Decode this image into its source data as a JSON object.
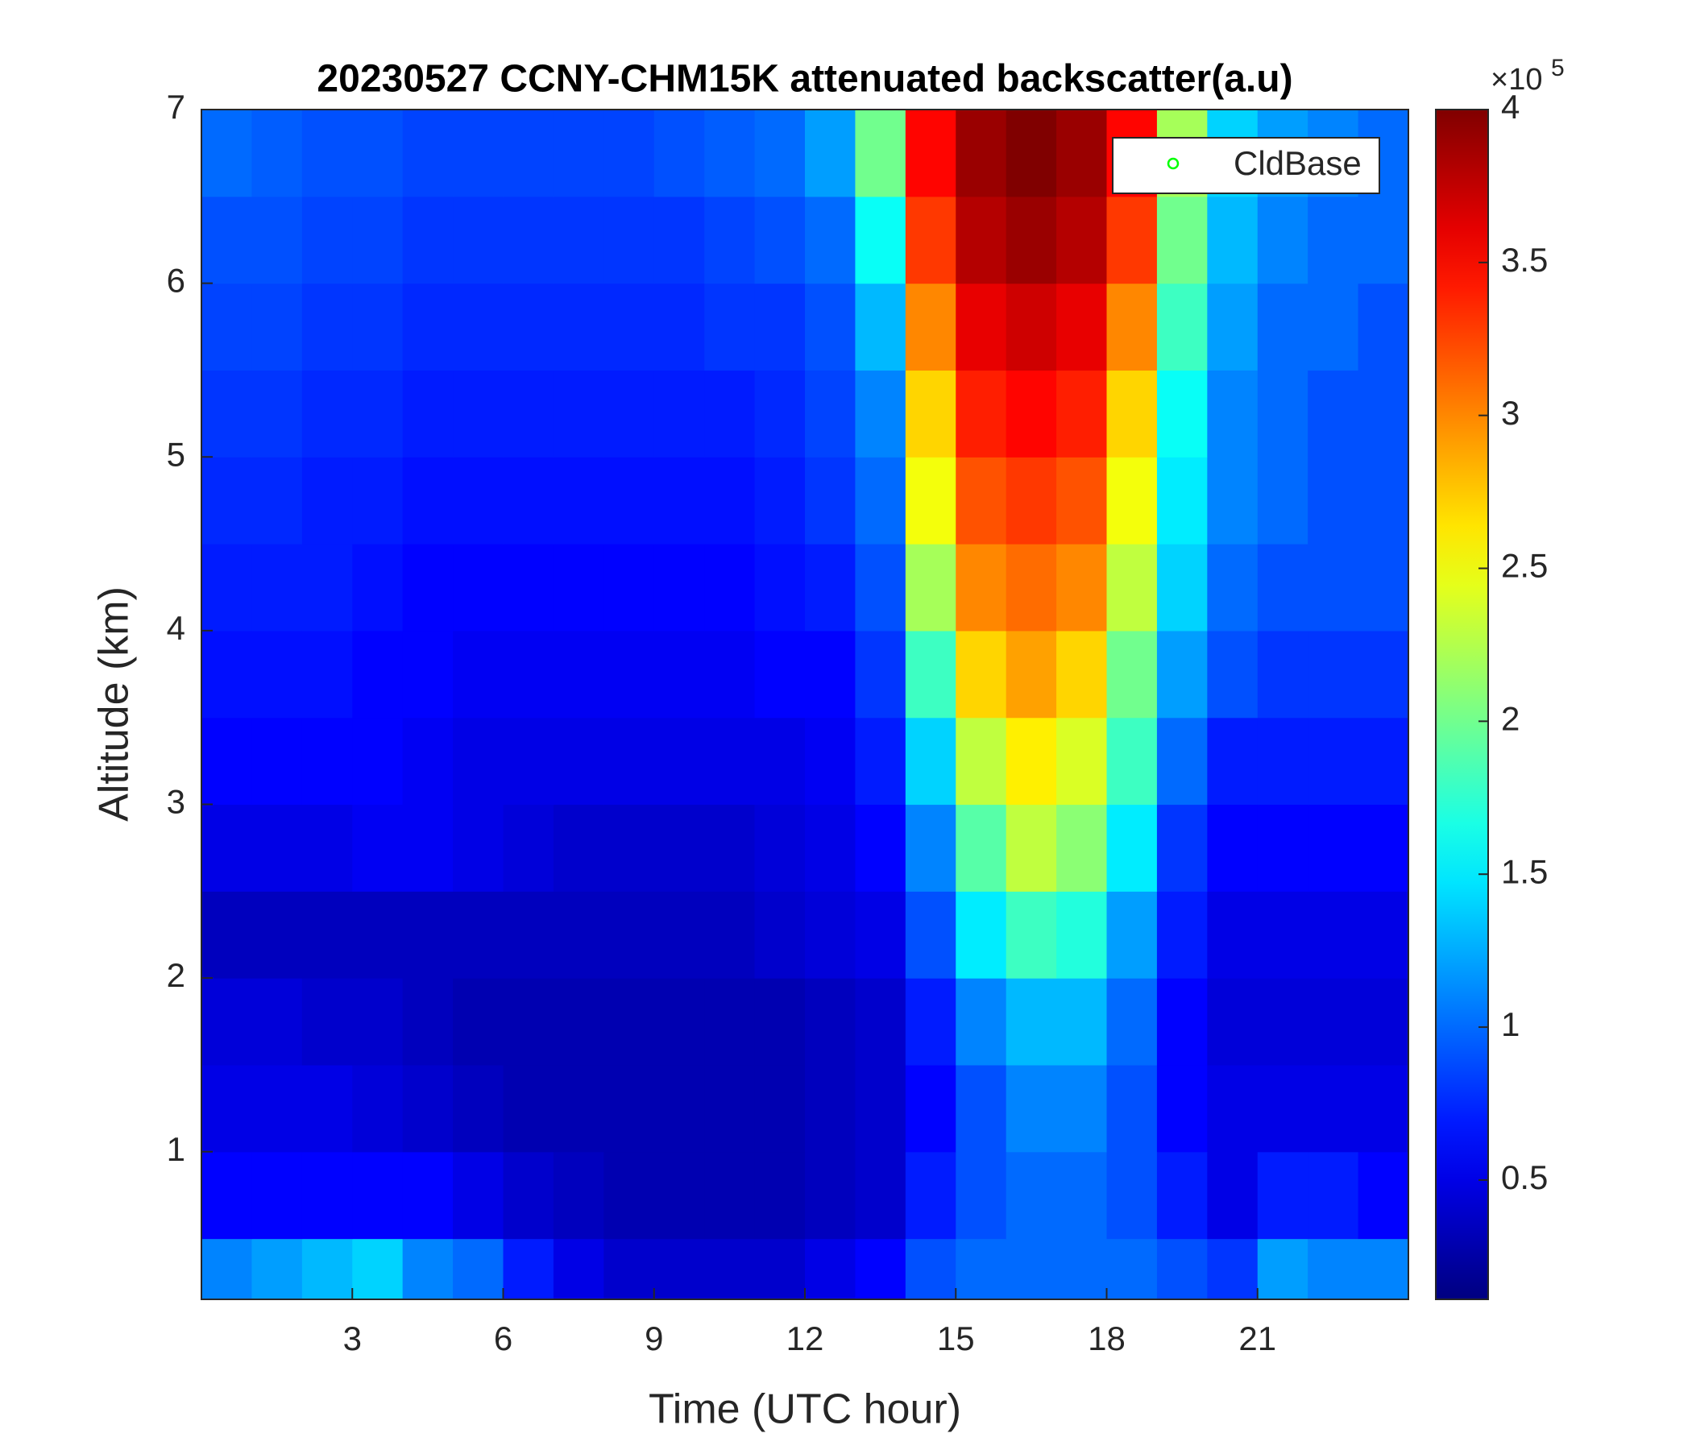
{
  "chart_data": {
    "type": "heatmap",
    "title": "20230527 CCNY-CHM15K attenuated backscatter(a.u)",
    "x_label": "Time (UTC hour)",
    "y_label": "Altitude (km)",
    "xlim": [
      0,
      24
    ],
    "ylim": [
      0.15,
      7
    ],
    "xticks": [
      3,
      6,
      9,
      12,
      15,
      18,
      21
    ],
    "yticks": [
      1,
      2,
      3,
      4,
      5,
      6,
      7
    ],
    "colormap": "jet",
    "clim": [
      0.11,
      4
    ],
    "colorbar_ticks": [
      0.5,
      1,
      1.5,
      2,
      2.5,
      3,
      3.5,
      4
    ],
    "colorbar_scale_base": "×10",
    "colorbar_scale_exponent": "5",
    "legend_location": "northeast",
    "series": [
      {
        "name": "CldBase",
        "color": "#00ff00",
        "marker": "o",
        "x": [],
        "values": []
      }
    ],
    "x_bins": [
      0,
      1,
      2,
      3,
      4,
      5,
      6,
      7,
      8,
      9,
      10,
      11,
      12,
      13,
      14,
      15,
      16,
      17,
      18,
      19,
      20,
      21,
      22,
      23,
      24
    ],
    "y_bins": [
      0.15,
      0.5,
      1,
      1.5,
      2,
      2.5,
      3,
      3.5,
      4,
      4.5,
      5,
      5.5,
      6,
      6.5,
      7
    ],
    "z": [
      [
        1.1,
        1.2,
        1.3,
        1.4,
        1.1,
        1.0,
        0.7,
        0.5,
        0.4,
        0.4,
        0.4,
        0.4,
        0.5,
        0.6,
        0.9,
        1.0,
        1.0,
        1.0,
        1.0,
        0.9,
        0.8,
        1.2,
        1.1,
        1.1
      ],
      [
        0.6,
        0.6,
        0.6,
        0.6,
        0.6,
        0.5,
        0.4,
        0.35,
        0.3,
        0.3,
        0.3,
        0.3,
        0.35,
        0.4,
        0.7,
        0.9,
        1.0,
        1.0,
        0.9,
        0.7,
        0.5,
        0.7,
        0.7,
        0.6
      ],
      [
        0.5,
        0.5,
        0.5,
        0.45,
        0.4,
        0.35,
        0.3,
        0.3,
        0.3,
        0.3,
        0.3,
        0.3,
        0.35,
        0.4,
        0.6,
        0.9,
        1.1,
        1.1,
        0.9,
        0.6,
        0.5,
        0.5,
        0.5,
        0.5
      ],
      [
        0.45,
        0.45,
        0.4,
        0.4,
        0.35,
        0.3,
        0.3,
        0.3,
        0.3,
        0.3,
        0.3,
        0.3,
        0.35,
        0.4,
        0.7,
        1.1,
        1.3,
        1.3,
        1.0,
        0.6,
        0.45,
        0.45,
        0.45,
        0.45
      ],
      [
        0.35,
        0.35,
        0.35,
        0.35,
        0.35,
        0.35,
        0.35,
        0.35,
        0.35,
        0.35,
        0.35,
        0.4,
        0.45,
        0.5,
        0.9,
        1.5,
        1.8,
        1.7,
        1.2,
        0.7,
        0.5,
        0.5,
        0.5,
        0.5
      ],
      [
        0.5,
        0.5,
        0.5,
        0.55,
        0.55,
        0.5,
        0.45,
        0.4,
        0.4,
        0.4,
        0.4,
        0.45,
        0.5,
        0.6,
        1.1,
        1.9,
        2.3,
        2.1,
        1.5,
        0.8,
        0.6,
        0.6,
        0.6,
        0.6
      ],
      [
        0.6,
        0.6,
        0.6,
        0.6,
        0.55,
        0.5,
        0.5,
        0.5,
        0.5,
        0.5,
        0.5,
        0.5,
        0.55,
        0.7,
        1.4,
        2.3,
        2.6,
        2.4,
        1.8,
        1.0,
        0.7,
        0.7,
        0.7,
        0.7
      ],
      [
        0.65,
        0.65,
        0.65,
        0.6,
        0.6,
        0.55,
        0.55,
        0.55,
        0.55,
        0.55,
        0.55,
        0.6,
        0.6,
        0.8,
        1.8,
        2.7,
        2.9,
        2.7,
        2.0,
        1.2,
        0.9,
        0.8,
        0.8,
        0.8
      ],
      [
        0.7,
        0.7,
        0.7,
        0.65,
        0.6,
        0.6,
        0.6,
        0.6,
        0.6,
        0.6,
        0.6,
        0.65,
        0.7,
        0.9,
        2.2,
        3.0,
        3.1,
        3.0,
        2.3,
        1.4,
        1.0,
        0.9,
        0.9,
        0.9
      ],
      [
        0.75,
        0.75,
        0.7,
        0.7,
        0.65,
        0.65,
        0.65,
        0.65,
        0.65,
        0.65,
        0.65,
        0.7,
        0.8,
        1.0,
        2.5,
        3.2,
        3.3,
        3.2,
        2.5,
        1.5,
        1.1,
        1.0,
        0.9,
        0.9
      ],
      [
        0.8,
        0.8,
        0.75,
        0.75,
        0.7,
        0.7,
        0.7,
        0.7,
        0.7,
        0.7,
        0.7,
        0.75,
        0.85,
        1.1,
        2.7,
        3.4,
        3.5,
        3.4,
        2.7,
        1.6,
        1.1,
        1.0,
        0.9,
        0.9
      ],
      [
        0.85,
        0.85,
        0.8,
        0.8,
        0.75,
        0.75,
        0.75,
        0.75,
        0.75,
        0.75,
        0.8,
        0.8,
        0.9,
        1.3,
        3.0,
        3.6,
        3.7,
        3.6,
        3.0,
        1.8,
        1.2,
        1.0,
        1.0,
        0.9
      ],
      [
        0.9,
        0.9,
        0.85,
        0.85,
        0.8,
        0.8,
        0.8,
        0.8,
        0.8,
        0.8,
        0.85,
        0.9,
        1.0,
        1.6,
        3.3,
        3.8,
        3.9,
        3.8,
        3.3,
        2.0,
        1.3,
        1.1,
        1.0,
        1.0
      ],
      [
        1.0,
        0.95,
        0.9,
        0.9,
        0.85,
        0.85,
        0.85,
        0.85,
        0.85,
        0.9,
        0.95,
        1.0,
        1.2,
        2.0,
        3.5,
        3.9,
        4.0,
        3.9,
        3.5,
        2.2,
        1.4,
        1.2,
        1.1,
        1.0
      ]
    ]
  }
}
